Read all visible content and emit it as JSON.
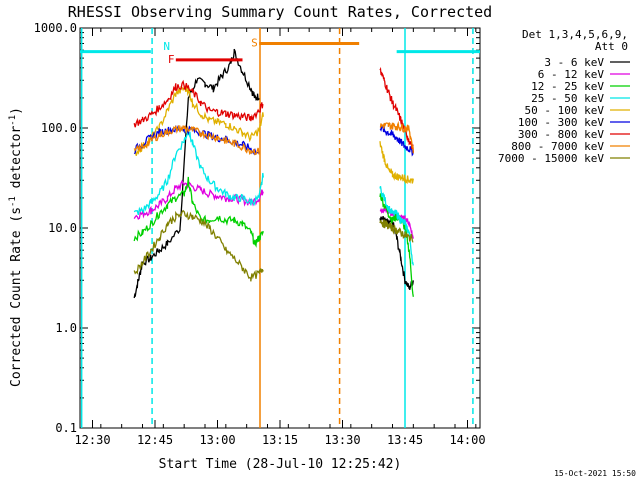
{
  "chart_data": {
    "type": "line",
    "title": "RHESSI Observing Summary Count Rates, Corrected",
    "xlabel": "Start Time (28-Jul-10 12:25:42)",
    "ylabel": "Corrected Count Rate (s",
    "ylabel_sup": "-1",
    "ylabel_tail": " detector",
    "ylabel_sup2": "-1",
    "ylabel_close": ")",
    "y_log": true,
    "ylim": [
      0.1,
      1000.0
    ],
    "y_ticks": [
      {
        "v": 1000,
        "label": "1000.0"
      },
      {
        "v": 100,
        "label": "100.0"
      },
      {
        "v": 10,
        "label": "10.0"
      },
      {
        "v": 1,
        "label": "1.0"
      },
      {
        "v": 0.1,
        "label": "0.1"
      }
    ],
    "xlim_min": [
      747,
      843
    ],
    "x_ticks": [
      {
        "v": 750,
        "label": "12:30"
      },
      {
        "v": 765,
        "label": "12:45"
      },
      {
        "v": 780,
        "label": "13:00"
      },
      {
        "v": 795,
        "label": "13:15"
      },
      {
        "v": 810,
        "label": "13:30"
      },
      {
        "v": 825,
        "label": "13:45"
      },
      {
        "v": 840,
        "label": "14:00"
      }
    ],
    "legend": {
      "header": [
        "Det 1,3,4,5,6,9,",
        "Att 0"
      ],
      "placement": "right"
    },
    "series": [
      {
        "name": "3 - 6 keV",
        "color": "#000000",
        "segments": [
          [
            [
              760,
              2
            ],
            [
              761,
              3
            ],
            [
              762,
              4.5
            ],
            [
              764,
              5
            ],
            [
              766,
              6
            ],
            [
              768,
              7
            ],
            [
              771,
              10
            ],
            [
              773,
              200
            ],
            [
              775,
              300
            ],
            [
              777,
              280
            ],
            [
              779,
              250
            ],
            [
              781,
              330
            ],
            [
              783,
              430
            ],
            [
              784,
              580
            ],
            [
              786,
              370
            ],
            [
              788,
              250
            ],
            [
              789,
              200
            ],
            [
              790,
              210
            ]
          ],
          [
            [
              819,
              13
            ],
            [
              820,
              12
            ],
            [
              821,
              11
            ],
            [
              822,
              11.5
            ],
            [
              823,
              8
            ],
            [
              824,
              5
            ],
            [
              825,
              3
            ],
            [
              826,
              2.5
            ],
            [
              827,
              3
            ]
          ]
        ]
      },
      {
        "name": "6 - 12 keV",
        "color": "#e000e0",
        "segments": [
          [
            [
              760,
              13
            ],
            [
              762,
              14
            ],
            [
              764,
              15
            ],
            [
              766,
              17
            ],
            [
              768,
              20
            ],
            [
              770,
              25
            ],
            [
              772,
              28
            ],
            [
              774,
              26
            ],
            [
              776,
              24
            ],
            [
              778,
              22
            ],
            [
              780,
              21
            ],
            [
              782,
              20
            ],
            [
              784,
              20
            ],
            [
              786,
              19
            ],
            [
              788,
              18
            ],
            [
              790,
              20
            ],
            [
              791,
              24
            ]
          ],
          [
            [
              819,
              16
            ],
            [
              820,
              15
            ],
            [
              821,
              14.5
            ],
            [
              822,
              14
            ],
            [
              823,
              13.5
            ],
            [
              824,
              13
            ],
            [
              825,
              12
            ],
            [
              826,
              11
            ],
            [
              827,
              8
            ]
          ]
        ]
      },
      {
        "name": "12 - 25 keV",
        "color": "#00d000",
        "segments": [
          [
            [
              760,
              8
            ],
            [
              762,
              9
            ],
            [
              764,
              11
            ],
            [
              766,
              14
            ],
            [
              768,
              17
            ],
            [
              770,
              20
            ],
            [
              772,
              22
            ],
            [
              773,
              30
            ],
            [
              774,
              18
            ],
            [
              776,
              12
            ],
            [
              778,
              12
            ],
            [
              780,
              13
            ],
            [
              782,
              12
            ],
            [
              784,
              12
            ],
            [
              786,
              11
            ],
            [
              788,
              9
            ],
            [
              789,
              7
            ],
            [
              790,
              8
            ],
            [
              791,
              9
            ]
          ],
          [
            [
              819,
              22
            ],
            [
              820,
              17
            ],
            [
              821,
              14
            ],
            [
              822,
              12
            ],
            [
              823,
              13
            ],
            [
              824,
              12
            ],
            [
              825,
              10
            ],
            [
              826,
              6
            ],
            [
              827,
              2
            ]
          ]
        ]
      },
      {
        "name": "25 - 50 keV",
        "color": "#00e8e8",
        "segments": [
          [
            [
              760,
              14
            ],
            [
              762,
              15
            ],
            [
              764,
              18
            ],
            [
              766,
              22
            ],
            [
              768,
              30
            ],
            [
              770,
              55
            ],
            [
              772,
              75
            ],
            [
              773,
              95
            ],
            [
              774,
              70
            ],
            [
              776,
              40
            ],
            [
              778,
              30
            ],
            [
              780,
              25
            ],
            [
              782,
              22
            ],
            [
              784,
              20
            ],
            [
              786,
              20
            ],
            [
              788,
              18
            ],
            [
              790,
              20
            ],
            [
              791,
              35
            ]
          ],
          [
            [
              819,
              25
            ],
            [
              820,
              20
            ],
            [
              821,
              16
            ],
            [
              822,
              14
            ],
            [
              823,
              14
            ],
            [
              824,
              12
            ],
            [
              825,
              11
            ],
            [
              826,
              9
            ],
            [
              827,
              4
            ]
          ]
        ]
      },
      {
        "name": "50 - 100 keV",
        "color": "#e0b000",
        "segments": [
          [
            [
              760,
              55
            ],
            [
              762,
              65
            ],
            [
              764,
              80
            ],
            [
              766,
              100
            ],
            [
              768,
              150
            ],
            [
              770,
              220
            ],
            [
              772,
              250
            ],
            [
              773,
              240
            ],
            [
              774,
              180
            ],
            [
              776,
              140
            ],
            [
              778,
              120
            ],
            [
              780,
              115
            ],
            [
              782,
              110
            ],
            [
              784,
              100
            ],
            [
              786,
              90
            ],
            [
              788,
              80
            ],
            [
              790,
              95
            ],
            [
              791,
              140
            ]
          ],
          [
            [
              819,
              70
            ],
            [
              820,
              50
            ],
            [
              821,
              38
            ],
            [
              822,
              34
            ],
            [
              823,
              33
            ],
            [
              824,
              32
            ],
            [
              825,
              32
            ],
            [
              826,
              30
            ],
            [
              827,
              30
            ]
          ]
        ]
      },
      {
        "name": "100 - 300 keV",
        "color": "#0000e0",
        "segments": [
          [
            [
              760,
              60
            ],
            [
              762,
              70
            ],
            [
              764,
              80
            ],
            [
              766,
              90
            ],
            [
              768,
              95
            ],
            [
              770,
              98
            ],
            [
              772,
              100
            ],
            [
              774,
              95
            ],
            [
              776,
              90
            ],
            [
              778,
              85
            ],
            [
              780,
              80
            ],
            [
              782,
              78
            ],
            [
              784,
              72
            ],
            [
              786,
              68
            ],
            [
              788,
              62
            ],
            [
              790,
              55
            ]
          ],
          [
            [
              819,
              105
            ],
            [
              820,
              95
            ],
            [
              821,
              90
            ],
            [
              822,
              85
            ],
            [
              823,
              80
            ],
            [
              824,
              72
            ],
            [
              825,
              66
            ],
            [
              826,
              62
            ],
            [
              827,
              58
            ]
          ]
        ]
      },
      {
        "name": "300 - 800 keV",
        "color": "#e00000",
        "segments": [
          [
            [
              760,
              110
            ],
            [
              762,
              120
            ],
            [
              764,
              135
            ],
            [
              766,
              160
            ],
            [
              768,
              190
            ],
            [
              770,
              260
            ],
            [
              772,
              270
            ],
            [
              774,
              230
            ],
            [
              776,
              180
            ],
            [
              778,
              150
            ],
            [
              780,
              145
            ],
            [
              782,
              140
            ],
            [
              784,
              135
            ],
            [
              786,
              130
            ],
            [
              788,
              125
            ],
            [
              790,
              150
            ],
            [
              791,
              180
            ]
          ],
          [
            [
              819,
              380
            ],
            [
              820,
              300
            ],
            [
              821,
              230
            ],
            [
              822,
              180
            ],
            [
              823,
              150
            ],
            [
              824,
              120
            ],
            [
              825,
              95
            ],
            [
              826,
              75
            ],
            [
              827,
              62
            ]
          ]
        ]
      },
      {
        "name": "800 - 7000 keV",
        "color": "#f08000",
        "segments": [
          [
            [
              760,
              58
            ],
            [
              762,
              65
            ],
            [
              764,
              75
            ],
            [
              766,
              85
            ],
            [
              768,
              92
            ],
            [
              770,
              98
            ],
            [
              772,
              100
            ],
            [
              774,
              95
            ],
            [
              776,
              90
            ],
            [
              778,
              85
            ],
            [
              780,
              80
            ],
            [
              782,
              75
            ],
            [
              784,
              70
            ],
            [
              786,
              65
            ],
            [
              788,
              60
            ],
            [
              790,
              58
            ]
          ],
          [
            [
              819,
              105
            ],
            [
              820,
              106
            ],
            [
              821,
              106
            ],
            [
              822,
              105
            ],
            [
              823,
              104
            ],
            [
              824,
              102
            ],
            [
              825,
              100
            ],
            [
              826,
              98
            ],
            [
              827,
              60
            ]
          ]
        ]
      },
      {
        "name": "7000 - 15000 keV",
        "color": "#808000",
        "segments": [
          [
            [
              760,
              3.5
            ],
            [
              762,
              4.5
            ],
            [
              764,
              6
            ],
            [
              766,
              8
            ],
            [
              768,
              11
            ],
            [
              770,
              13
            ],
            [
              772,
              14
            ],
            [
              774,
              13
            ],
            [
              776,
              12
            ],
            [
              778,
              10
            ],
            [
              780,
              8
            ],
            [
              782,
              6
            ],
            [
              784,
              5
            ],
            [
              786,
              4
            ],
            [
              788,
              3.2
            ],
            [
              790,
              3.5
            ],
            [
              791,
              4
            ]
          ],
          [
            [
              819,
              12
            ],
            [
              820,
              11
            ],
            [
              821,
              10.5
            ],
            [
              822,
              10
            ],
            [
              823,
              9.5
            ],
            [
              824,
              9
            ],
            [
              825,
              8.5
            ],
            [
              826,
              8
            ],
            [
              827,
              8
            ]
          ]
        ]
      }
    ],
    "annotations": [
      {
        "label": "N",
        "color": "#00e8e8",
        "x": 767,
        "y_top": 600,
        "x_line": 764.3
      },
      {
        "label": "F",
        "color": "#e00000",
        "x": 770,
        "x_end": 786,
        "y": 480
      },
      {
        "label": "S",
        "color": "#f08000",
        "x": 790,
        "x_end": 814,
        "y": 700
      },
      {
        "label": "",
        "color": "#00e8e8",
        "x": 747,
        "x_end": 764,
        "y": 580
      },
      {
        "label": "",
        "color": "#00e8e8",
        "x": 823,
        "x_end": 843,
        "y": 580
      }
    ],
    "vertical_lines": [
      {
        "x": 764.3,
        "color": "#00e8e8",
        "style": "dashed"
      },
      {
        "x": 790.2,
        "color": "#f08000",
        "style": "solid"
      },
      {
        "x": 809.3,
        "color": "#f08000",
        "style": "dashed"
      },
      {
        "x": 825.0,
        "color": "#00e8e8",
        "style": "solid"
      },
      {
        "x": 841.3,
        "color": "#00e8e8",
        "style": "dashed"
      },
      {
        "x": 747.4,
        "color": "#00e8e8",
        "style": "solid"
      }
    ],
    "footer_date": "15-Oct-2021 15:50"
  }
}
